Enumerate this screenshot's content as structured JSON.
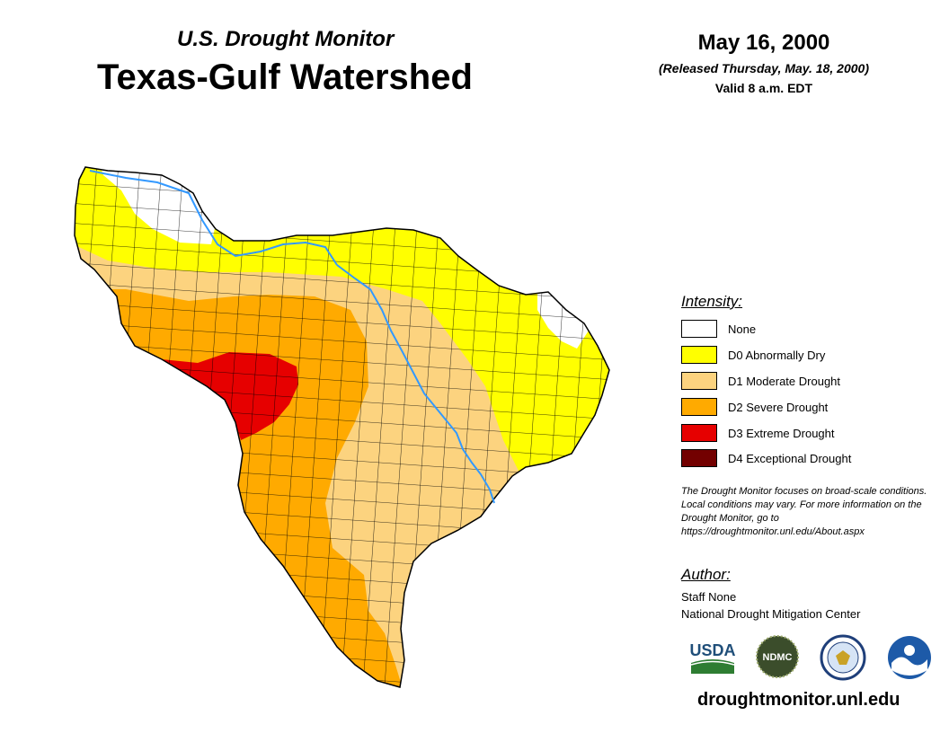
{
  "header": {
    "subtitle": "U.S. Drought Monitor",
    "title": "Texas-Gulf Watershed",
    "date": "May 16, 2000",
    "released": "(Released Thursday, May. 18, 2000)",
    "valid": "Valid 8 a.m. EDT"
  },
  "legend": {
    "title": "Intensity:",
    "items": [
      {
        "label": "None",
        "color": "#ffffff"
      },
      {
        "label": "D0 Abnormally Dry",
        "color": "#ffff00"
      },
      {
        "label": "D1 Moderate Drought",
        "color": "#fcd37f"
      },
      {
        "label": "D2 Severe Drought",
        "color": "#ffaa00"
      },
      {
        "label": "D3 Extreme Drought",
        "color": "#e60000"
      },
      {
        "label": "D4 Exceptional Drought",
        "color": "#730000"
      }
    ]
  },
  "note": "The Drought Monitor focuses on broad-scale conditions. Local conditions may vary. For more information on the Drought Monitor, go to https://droughtmonitor.unl.edu/About.aspx",
  "author": {
    "title": "Author:",
    "name": "Staff None",
    "org": "National Drought Mitigation Center"
  },
  "logos": {
    "usda": "USDA",
    "ndmc": "NDMC",
    "noaa": "NOAA"
  },
  "website": "droughtmonitor.unl.edu",
  "colors": {
    "river": "#3399ff",
    "county_lines": "#000000"
  }
}
